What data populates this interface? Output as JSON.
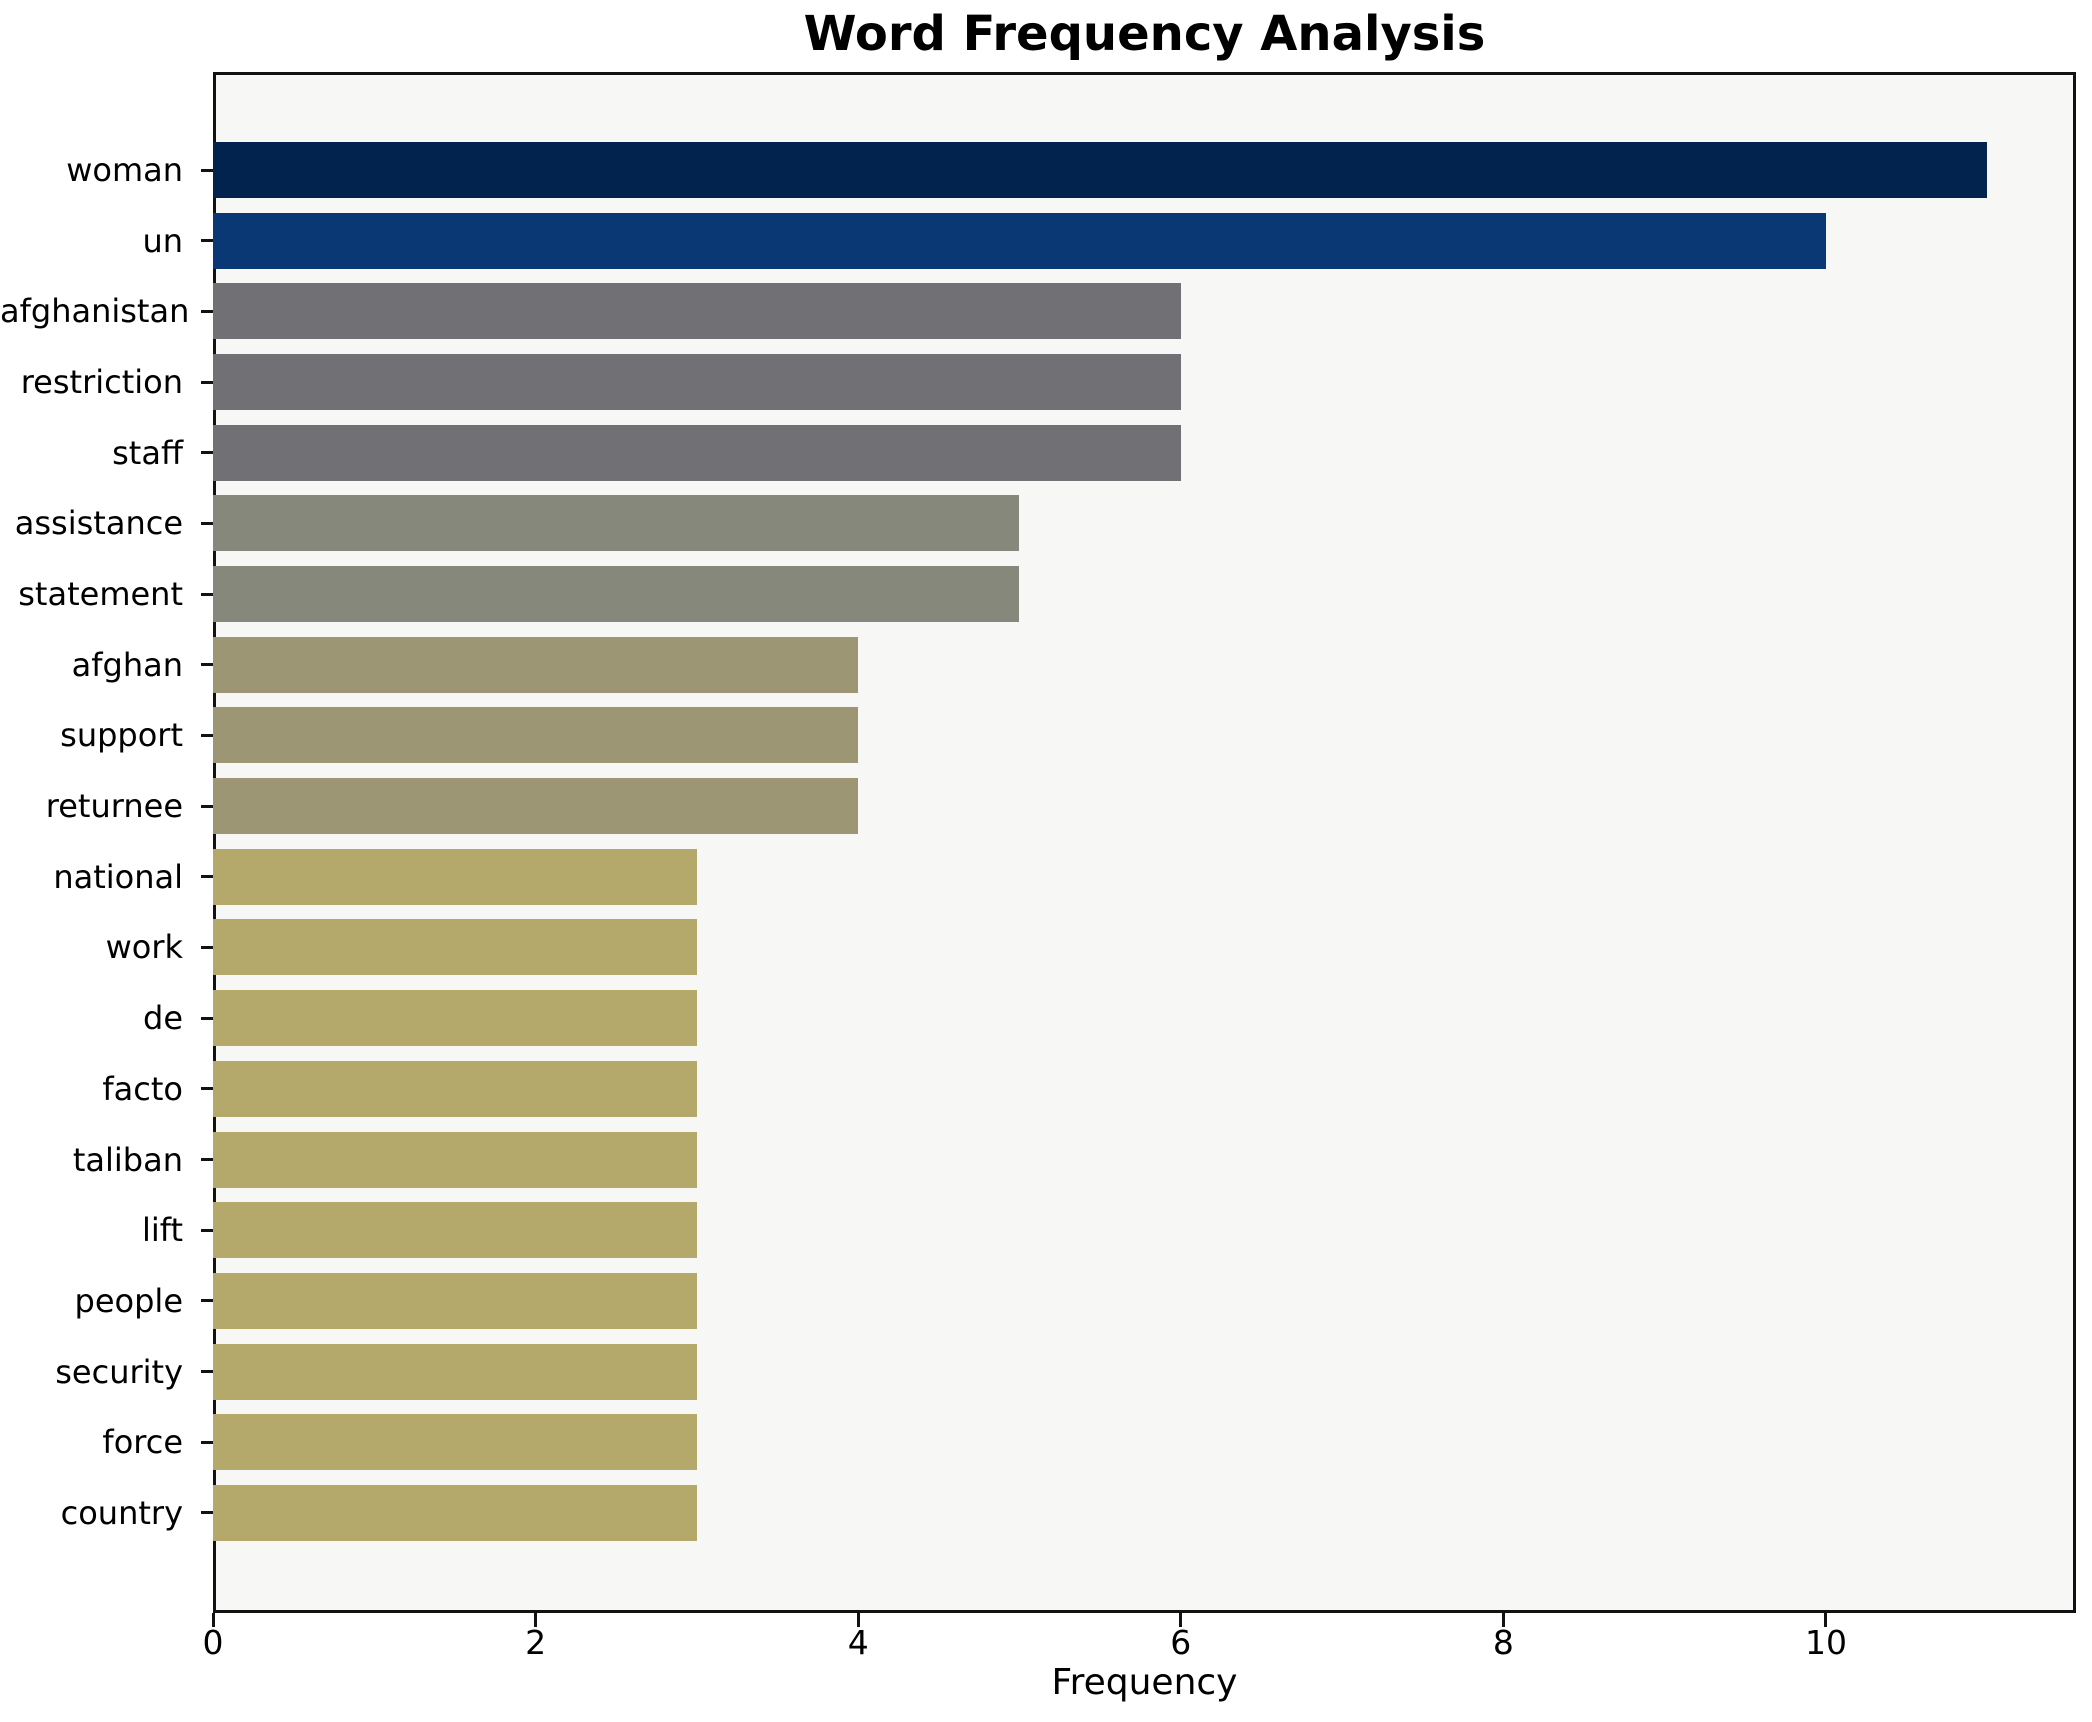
{
  "chart_data": {
    "type": "bar",
    "orientation": "horizontal",
    "title": "Word Frequency Analysis",
    "xlabel": "Frequency",
    "ylabel": "",
    "categories": [
      "woman",
      "un",
      "afghanistan",
      "restriction",
      "staff",
      "assistance",
      "statement",
      "afghan",
      "support",
      "returnee",
      "national",
      "work",
      "de",
      "facto",
      "taliban",
      "lift",
      "people",
      "security",
      "force",
      "country"
    ],
    "values": [
      11,
      10,
      6,
      6,
      6,
      5,
      5,
      4,
      4,
      4,
      3,
      3,
      3,
      3,
      3,
      3,
      3,
      3,
      3,
      3
    ],
    "bar_colors": [
      "#02234e",
      "#0a3875",
      "#717175",
      "#717175",
      "#717175",
      "#87887c",
      "#87887c",
      "#9c9674",
      "#9c9674",
      "#9c9674",
      "#b4a96b",
      "#b4a96b",
      "#b4a96b",
      "#b4a96b",
      "#b4a96b",
      "#b4a96b",
      "#b4a96b",
      "#b4a96b",
      "#b4a96b",
      "#b4a96b"
    ],
    "xlim": [
      0,
      11.55
    ],
    "xticks": [
      0,
      2,
      4,
      6,
      8,
      10
    ],
    "grid": false,
    "legend": null,
    "plot_background": "#f7f7f6",
    "figure_background": "#ffffff",
    "spine_color": "#121212"
  }
}
